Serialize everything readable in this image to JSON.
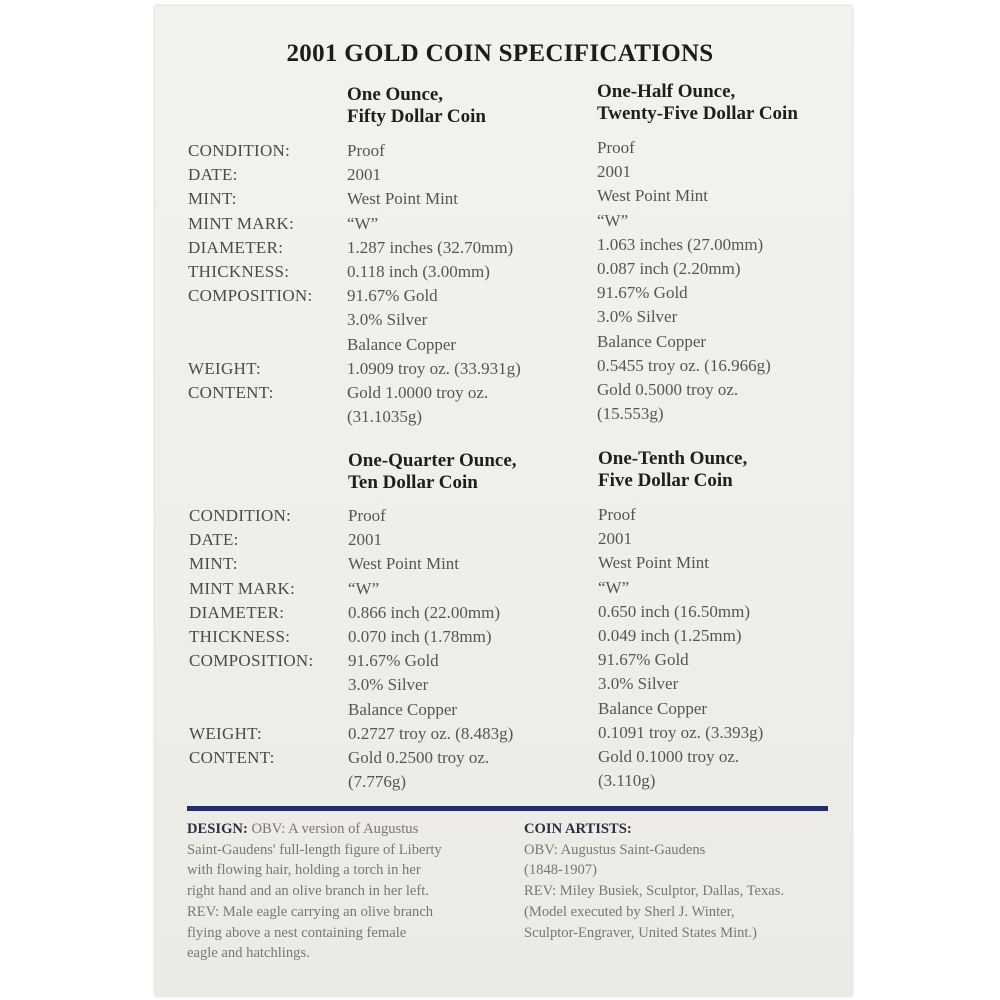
{
  "title": "2001 GOLD COIN SPECIFICATIONS",
  "labels": [
    "CONDITION:",
    "DATE:",
    "MINT:",
    "MINT MARK:",
    "DIAMETER:",
    "THICKNESS:",
    "COMPOSITION:",
    "",
    "",
    "WEIGHT:",
    "CONTENT:"
  ],
  "coins": [
    {
      "heading": [
        "One Ounce,",
        "Fifty Dollar Coin"
      ],
      "values": [
        "Proof",
        "2001",
        "West Point Mint",
        "“W”",
        "1.287 inches (32.70mm)",
        "0.118 inch (3.00mm)",
        "91.67% Gold",
        "3.0% Silver",
        "Balance Copper",
        "1.0909 troy oz. (33.931g)",
        "Gold 1.0000 troy oz.",
        "(31.1035g)"
      ]
    },
    {
      "heading": [
        "One-Half Ounce,",
        "Twenty-Five Dollar Coin"
      ],
      "values": [
        "Proof",
        "2001",
        "West Point Mint",
        "“W”",
        "1.063 inches (27.00mm)",
        "0.087 inch (2.20mm)",
        "91.67% Gold",
        "3.0% Silver",
        "Balance Copper",
        "0.5455 troy oz. (16.966g)",
        "Gold 0.5000 troy oz.",
        "(15.553g)"
      ]
    },
    {
      "heading": [
        "One-Quarter Ounce,",
        "Ten Dollar Coin"
      ],
      "values": [
        "Proof",
        "2001",
        "West Point Mint",
        "“W”",
        "0.866 inch (22.00mm)",
        "0.070 inch (1.78mm)",
        "91.67% Gold",
        "3.0% Silver",
        "Balance Copper",
        "0.2727 troy oz. (8.483g)",
        "Gold 0.2500 troy oz.",
        "(7.776g)"
      ]
    },
    {
      "heading": [
        "One-Tenth Ounce,",
        "Five Dollar Coin"
      ],
      "values": [
        "Proof",
        "2001",
        "West Point Mint",
        "“W”",
        "0.650 inch (16.50mm)",
        "0.049 inch (1.25mm)",
        "91.67% Gold",
        "3.0% Silver",
        "Balance Copper",
        "0.1091 troy oz. (3.393g)",
        "Gold 0.1000 troy oz.",
        "(3.110g)"
      ]
    }
  ],
  "design": {
    "label": "DESIGN:",
    "lines": [
      "OBV: A version of Augustus",
      "Saint-Gaudens' full-length figure of Liberty",
      "with flowing hair, holding a torch in her",
      "right hand and an olive branch in her left.",
      "REV: Male eagle carrying an olive branch",
      "flying above a nest containing female",
      "eagle and hatchlings."
    ]
  },
  "artists": {
    "label": "COIN ARTISTS:",
    "lines": [
      "OBV: Augustus Saint-Gaudens",
      "(1848-1907)",
      "REV: Miley Busiek, Sculptor, Dallas, Texas.",
      "(Model executed by Sherl J. Winter,",
      "Sculptor-Engraver, United States Mint.)"
    ]
  },
  "colors": {
    "rule": "#1f2f6b",
    "paper": "#f3f2ec"
  }
}
